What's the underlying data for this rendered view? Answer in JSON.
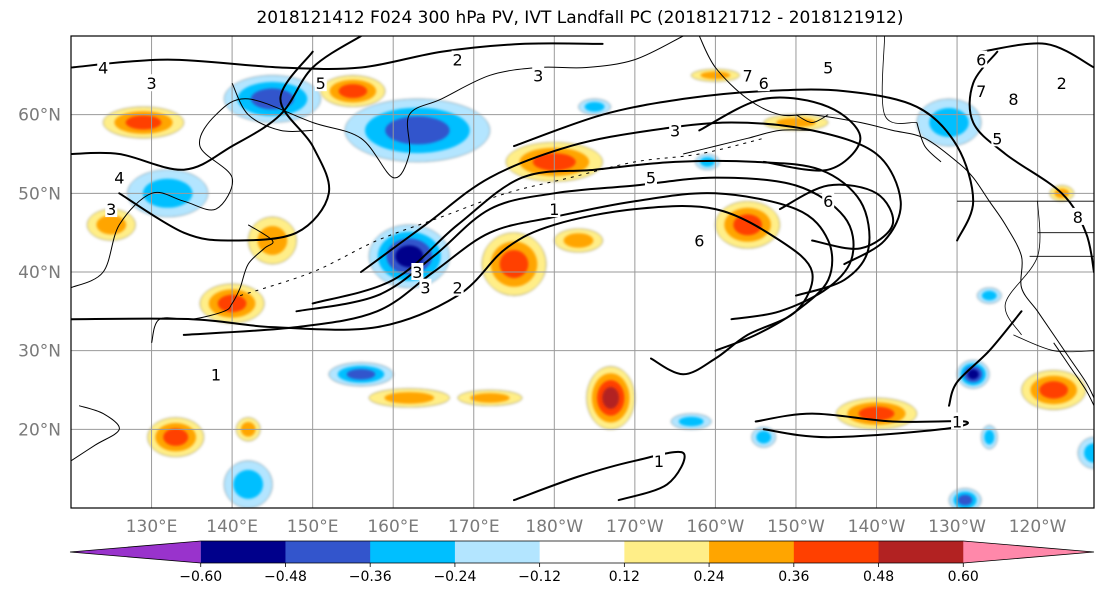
{
  "title": "2018121412 F024 300 hPa PV, IVT Landfall PC (2018121712 - 2018121912)",
  "map": {
    "projection": "cylindrical",
    "lon_range": [
      120,
      247
    ],
    "lat_range": [
      10,
      70
    ],
    "lat_ticks": [
      {
        "lat": 60,
        "label": "60°N"
      },
      {
        "lat": 50,
        "label": "50°N"
      },
      {
        "lat": 40,
        "label": "40°N"
      },
      {
        "lat": 30,
        "label": "30°N"
      },
      {
        "lat": 20,
        "label": "20°N"
      }
    ],
    "lon_ticks": [
      {
        "lon": 130,
        "label": "130°E"
      },
      {
        "lon": 140,
        "label": "140°E"
      },
      {
        "lon": 150,
        "label": "150°E"
      },
      {
        "lon": 160,
        "label": "160°E"
      },
      {
        "lon": 170,
        "label": "170°E"
      },
      {
        "lon": 180,
        "label": "180°W"
      },
      {
        "lon": 190,
        "label": "170°W"
      },
      {
        "lon": 200,
        "label": "160°W"
      },
      {
        "lon": 210,
        "label": "150°W"
      },
      {
        "lon": 220,
        "label": "140°W"
      },
      {
        "lon": 230,
        "label": "130°W"
      },
      {
        "lon": 240,
        "label": "120°W"
      }
    ],
    "grid": true,
    "contour_labels": [
      {
        "text": "4",
        "lon": 124,
        "lat": 66
      },
      {
        "text": "3",
        "lon": 130,
        "lat": 64
      },
      {
        "text": "5",
        "lon": 151,
        "lat": 64
      },
      {
        "text": "2",
        "lon": 168,
        "lat": 67
      },
      {
        "text": "3",
        "lon": 178,
        "lat": 65
      },
      {
        "text": "4",
        "lon": 126,
        "lat": 52
      },
      {
        "text": "3",
        "lon": 125,
        "lat": 48
      },
      {
        "text": "1",
        "lon": 138,
        "lat": 27
      },
      {
        "text": "3",
        "lon": 163,
        "lat": 40
      },
      {
        "text": "3",
        "lon": 164,
        "lat": 38
      },
      {
        "text": "2",
        "lon": 168,
        "lat": 38
      },
      {
        "text": "1",
        "lon": 180,
        "lat": 48
      },
      {
        "text": "3",
        "lon": 195,
        "lat": 58
      },
      {
        "text": "5",
        "lon": 192,
        "lat": 52
      },
      {
        "text": "6",
        "lon": 198,
        "lat": 44
      },
      {
        "text": "7",
        "lon": 204,
        "lat": 65
      },
      {
        "text": "6",
        "lon": 206,
        "lat": 64
      },
      {
        "text": "5",
        "lon": 214,
        "lat": 66
      },
      {
        "text": "6",
        "lon": 214,
        "lat": 49
      },
      {
        "text": "6",
        "lon": 233,
        "lat": 67
      },
      {
        "text": "7",
        "lon": 233,
        "lat": 63
      },
      {
        "text": "8",
        "lon": 237,
        "lat": 62
      },
      {
        "text": "5",
        "lon": 235,
        "lat": 57
      },
      {
        "text": "2",
        "lon": 243,
        "lat": 64
      },
      {
        "text": "1",
        "lon": 230,
        "lat": 21
      },
      {
        "text": "1",
        "lon": 193,
        "lat": 16
      },
      {
        "text": "8",
        "lon": 245,
        "lat": 47
      }
    ]
  },
  "colorbar": {
    "colors": [
      "#9933cc",
      "#00008b",
      "#3355cc",
      "#00bfff",
      "#b3e5ff",
      "#ffffff",
      "#ffee88",
      "#ffa500",
      "#ff4000",
      "#b22222",
      "#ff88aa"
    ],
    "ticks": [
      {
        "value": -0.6,
        "label": "−0.60"
      },
      {
        "value": -0.48,
        "label": "−0.48"
      },
      {
        "value": -0.36,
        "label": "−0.36"
      },
      {
        "value": -0.24,
        "label": "−0.24"
      },
      {
        "value": -0.12,
        "label": "−0.12"
      },
      {
        "value": 0.12,
        "label": "0.12"
      },
      {
        "value": 0.24,
        "label": "0.24"
      },
      {
        "value": 0.36,
        "label": "0.36"
      },
      {
        "value": 0.48,
        "label": "0.48"
      },
      {
        "value": 0.6,
        "label": "0.60"
      }
    ]
  },
  "anomalies": [
    {
      "lon": 129,
      "lat": 59,
      "rx": 5,
      "ry": 2.0,
      "level": 0.4
    },
    {
      "lon": 145,
      "lat": 62,
      "rx": 6,
      "ry": 3.0,
      "level": -0.4
    },
    {
      "lon": 155,
      "lat": 63,
      "rx": 4,
      "ry": 2.0,
      "level": 0.42
    },
    {
      "lon": 163,
      "lat": 58,
      "rx": 9,
      "ry": 4.0,
      "level": -0.45
    },
    {
      "lon": 125,
      "lat": 46,
      "rx": 3,
      "ry": 2.0,
      "level": 0.3
    },
    {
      "lon": 132,
      "lat": 50,
      "rx": 5,
      "ry": 3.0,
      "level": -0.3
    },
    {
      "lon": 145,
      "lat": 44,
      "rx": 3,
      "ry": 3.0,
      "level": 0.35
    },
    {
      "lon": 140,
      "lat": 36,
      "rx": 4,
      "ry": 2.5,
      "level": 0.45
    },
    {
      "lon": 162,
      "lat": 42,
      "rx": 5,
      "ry": 4.0,
      "level": -0.55
    },
    {
      "lon": 175,
      "lat": 41,
      "rx": 4,
      "ry": 4.0,
      "level": 0.45
    },
    {
      "lon": 183,
      "lat": 44,
      "rx": 3,
      "ry": 1.5,
      "level": 0.35
    },
    {
      "lon": 180,
      "lat": 54,
      "rx": 6,
      "ry": 2.5,
      "level": 0.45
    },
    {
      "lon": 204,
      "lat": 46,
      "rx": 4,
      "ry": 3.0,
      "level": 0.45
    },
    {
      "lon": 229,
      "lat": 59,
      "rx": 4,
      "ry": 3.0,
      "level": -0.3
    },
    {
      "lon": 210,
      "lat": 59,
      "rx": 4,
      "ry": 1.0,
      "level": 0.3
    },
    {
      "lon": 200,
      "lat": 65,
      "rx": 3,
      "ry": 0.8,
      "level": 0.28
    },
    {
      "lon": 185,
      "lat": 61,
      "rx": 2,
      "ry": 1.0,
      "level": -0.28
    },
    {
      "lon": 156,
      "lat": 27,
      "rx": 4,
      "ry": 1.5,
      "level": -0.4
    },
    {
      "lon": 162,
      "lat": 24,
      "rx": 5,
      "ry": 1.2,
      "level": 0.32
    },
    {
      "lon": 172,
      "lat": 24,
      "rx": 4,
      "ry": 1.0,
      "level": 0.32
    },
    {
      "lon": 187,
      "lat": 24,
      "rx": 3,
      "ry": 4.0,
      "level": 0.48
    },
    {
      "lon": 133,
      "lat": 19,
      "rx": 3.5,
      "ry": 2.5,
      "level": 0.42
    },
    {
      "lon": 142,
      "lat": 20,
      "rx": 1.5,
      "ry": 1.5,
      "level": 0.28
    },
    {
      "lon": 142,
      "lat": 13,
      "rx": 3,
      "ry": 3.0,
      "level": -0.3
    },
    {
      "lon": 197,
      "lat": 21,
      "rx": 2.5,
      "ry": 1.0,
      "level": -0.3
    },
    {
      "lon": 220,
      "lat": 22,
      "rx": 5,
      "ry": 2.0,
      "level": 0.45
    },
    {
      "lon": 232,
      "lat": 27,
      "rx": 2,
      "ry": 1.8,
      "level": -0.5
    },
    {
      "lon": 242,
      "lat": 25,
      "rx": 4,
      "ry": 2.5,
      "level": 0.4
    },
    {
      "lon": 234,
      "lat": 19,
      "rx": 1,
      "ry": 1.5,
      "level": -0.28
    },
    {
      "lon": 247,
      "lat": 17,
      "rx": 2,
      "ry": 2.0,
      "level": -0.3
    },
    {
      "lon": 231,
      "lat": 11,
      "rx": 2,
      "ry": 1.5,
      "level": -0.4
    },
    {
      "lon": 234,
      "lat": 37,
      "rx": 1.5,
      "ry": 1.0,
      "level": -0.28
    },
    {
      "lon": 206,
      "lat": 19,
      "rx": 1.5,
      "ry": 1.3,
      "level": -0.28
    },
    {
      "lon": 243,
      "lat": 50,
      "rx": 1.5,
      "ry": 1.0,
      "level": 0.3
    },
    {
      "lon": 199,
      "lat": 54,
      "rx": 1.5,
      "ry": 1.0,
      "level": -0.28
    }
  ],
  "contours": [
    [
      [
        120,
        34
      ],
      [
        135,
        34
      ],
      [
        145,
        33
      ],
      [
        158,
        33
      ],
      [
        168,
        37
      ],
      [
        174,
        43
      ],
      [
        180,
        46
      ],
      [
        190,
        48
      ],
      [
        200,
        48
      ],
      [
        208,
        44
      ],
      [
        212,
        40
      ],
      [
        210,
        35
      ],
      [
        204,
        32
      ],
      [
        200,
        29
      ],
      [
        196,
        27
      ],
      [
        192,
        29
      ]
    ],
    [
      [
        134,
        32
      ],
      [
        148,
        33
      ],
      [
        158,
        35
      ],
      [
        165,
        40
      ],
      [
        172,
        45
      ],
      [
        180,
        47
      ],
      [
        190,
        49
      ],
      [
        200,
        50
      ],
      [
        210,
        48
      ],
      [
        214,
        44
      ],
      [
        214,
        39
      ],
      [
        210,
        35
      ],
      [
        205,
        32
      ],
      [
        200,
        30
      ]
    ],
    [
      [
        148,
        35
      ],
      [
        158,
        37
      ],
      [
        165,
        42
      ],
      [
        172,
        48
      ],
      [
        180,
        50
      ],
      [
        190,
        51
      ],
      [
        200,
        52
      ],
      [
        210,
        51
      ],
      [
        216,
        47
      ],
      [
        217,
        42
      ],
      [
        214,
        38
      ],
      [
        208,
        35
      ],
      [
        202,
        34
      ]
    ],
    [
      [
        150,
        36
      ],
      [
        160,
        39
      ],
      [
        168,
        46
      ],
      [
        176,
        52
      ],
      [
        185,
        53
      ],
      [
        195,
        54
      ],
      [
        205,
        54
      ],
      [
        213,
        53
      ],
      [
        218,
        49
      ],
      [
        219,
        43
      ],
      [
        216,
        39
      ],
      [
        210,
        37
      ]
    ],
    [
      [
        156,
        40
      ],
      [
        164,
        46
      ],
      [
        172,
        52
      ],
      [
        182,
        56
      ],
      [
        192,
        58
      ],
      [
        202,
        59
      ],
      [
        212,
        58
      ],
      [
        220,
        55
      ],
      [
        223,
        49
      ],
      [
        221,
        44
      ],
      [
        216,
        41
      ]
    ],
    [
      [
        175,
        56
      ],
      [
        186,
        60
      ],
      [
        196,
        62
      ],
      [
        206,
        63
      ],
      [
        216,
        63
      ],
      [
        225,
        61
      ],
      [
        230,
        56
      ],
      [
        232,
        49
      ],
      [
        230,
        44
      ]
    ],
    [
      [
        120,
        66
      ],
      [
        132,
        67
      ],
      [
        146,
        66
      ],
      [
        156,
        66
      ],
      [
        166,
        68
      ],
      [
        176,
        69
      ],
      [
        186,
        69
      ]
    ],
    [
      [
        120,
        55
      ],
      [
        126,
        55
      ],
      [
        134,
        53
      ],
      [
        140,
        56
      ],
      [
        146,
        60
      ],
      [
        150,
        66
      ],
      [
        156,
        70
      ]
    ],
    [
      [
        126,
        50
      ],
      [
        134,
        45
      ],
      [
        140,
        44
      ],
      [
        148,
        45
      ],
      [
        152,
        50
      ],
      [
        150,
        56
      ],
      [
        146,
        62
      ],
      [
        150,
        68
      ]
    ],
    [
      [
        198,
        58
      ],
      [
        206,
        62
      ],
      [
        214,
        61
      ],
      [
        218,
        57
      ],
      [
        214,
        53
      ],
      [
        206,
        54
      ]
    ],
    [
      [
        208,
        48
      ],
      [
        214,
        51
      ],
      [
        220,
        50
      ],
      [
        222,
        46
      ],
      [
        218,
        43
      ],
      [
        212,
        44
      ]
    ],
    [
      [
        205,
        21
      ],
      [
        212,
        22
      ],
      [
        222,
        21
      ],
      [
        231,
        21
      ],
      [
        228,
        20
      ],
      [
        214,
        19
      ],
      [
        206,
        20
      ]
    ],
    [
      [
        175,
        11
      ],
      [
        183,
        14
      ],
      [
        190,
        16
      ],
      [
        196,
        17
      ],
      [
        194,
        13
      ],
      [
        188,
        11
      ]
    ],
    [
      [
        233,
        68
      ],
      [
        241,
        69
      ],
      [
        247,
        66
      ]
    ],
    [
      [
        238,
        35
      ],
      [
        234,
        30
      ],
      [
        230,
        26
      ],
      [
        229,
        23
      ]
    ],
    [
      [
        235,
        68
      ],
      [
        232,
        64
      ],
      [
        232,
        59
      ],
      [
        236,
        55
      ],
      [
        243,
        50
      ],
      [
        246,
        45
      ],
      [
        247,
        40
      ]
    ]
  ],
  "coastlines": [
    [
      [
        120,
        38
      ],
      [
        124,
        40
      ],
      [
        126,
        46
      ],
      [
        130,
        50
      ],
      [
        134,
        49
      ],
      [
        138,
        48
      ],
      [
        140,
        52
      ],
      [
        136,
        56
      ],
      [
        138,
        60
      ],
      [
        142,
        62
      ],
      [
        150,
        59
      ],
      [
        156,
        57
      ],
      [
        160,
        52
      ],
      [
        162,
        55
      ],
      [
        162,
        60
      ],
      [
        166,
        62
      ],
      [
        172,
        65
      ],
      [
        178,
        66
      ],
      [
        184,
        66
      ],
      [
        190,
        67
      ],
      [
        196,
        70
      ]
    ],
    [
      [
        130,
        31
      ],
      [
        131,
        34
      ],
      [
        135,
        34
      ],
      [
        139,
        35
      ],
      [
        140,
        36
      ],
      [
        141,
        38
      ],
      [
        142,
        41
      ],
      [
        144,
        43
      ],
      [
        145,
        44
      ],
      [
        142,
        46
      ]
    ],
    [
      [
        140,
        64
      ],
      [
        142,
        60
      ],
      [
        146,
        58
      ],
      [
        150,
        58
      ]
    ],
    [
      [
        198,
        70
      ],
      [
        200,
        66
      ],
      [
        204,
        62
      ],
      [
        208,
        60
      ],
      [
        212,
        60
      ],
      [
        218,
        59
      ],
      [
        222,
        58
      ],
      [
        226,
        57
      ],
      [
        230,
        54
      ],
      [
        232,
        52
      ],
      [
        234,
        49
      ],
      [
        236,
        46
      ],
      [
        238,
        42
      ],
      [
        238,
        38
      ],
      [
        240,
        35
      ],
      [
        242,
        32
      ],
      [
        244,
        29
      ],
      [
        246,
        26
      ],
      [
        247,
        24
      ]
    ],
    [
      [
        196,
        55
      ],
      [
        200,
        56
      ],
      [
        204,
        57
      ],
      [
        208,
        58
      ],
      [
        212,
        58
      ]
    ],
    [
      [
        210,
        60
      ],
      [
        212,
        59
      ],
      [
        214,
        60
      ]
    ],
    [
      [
        225,
        59
      ],
      [
        226,
        56
      ],
      [
        228,
        54
      ]
    ],
    [
      [
        242,
        31
      ],
      [
        244,
        28
      ],
      [
        246,
        25
      ],
      [
        247,
        23
      ]
    ],
    [
      [
        120,
        16
      ],
      [
        123,
        18
      ],
      [
        126,
        20
      ],
      [
        124,
        22
      ],
      [
        121,
        23
      ]
    ]
  ],
  "borders": [
    [
      [
        221,
        70
      ],
      [
        221,
        60
      ],
      [
        225,
        59
      ]
    ],
    [
      [
        230,
        49
      ],
      [
        247,
        49
      ]
    ],
    [
      [
        240,
        49
      ],
      [
        240,
        42
      ],
      [
        236,
        36
      ],
      [
        238,
        32
      ]
    ],
    [
      [
        239,
        42
      ],
      [
        247,
        42
      ]
    ],
    [
      [
        237,
        32
      ],
      [
        242,
        30
      ],
      [
        247,
        30
      ]
    ],
    [
      [
        240,
        45
      ],
      [
        247,
        45
      ]
    ]
  ],
  "dashed_lines": [
    [
      [
        141,
        37
      ],
      [
        150,
        40
      ],
      [
        158,
        44
      ],
      [
        166,
        47
      ],
      [
        174,
        50
      ],
      [
        182,
        52
      ],
      [
        190,
        54
      ],
      [
        198,
        55
      ],
      [
        206,
        57
      ]
    ]
  ]
}
